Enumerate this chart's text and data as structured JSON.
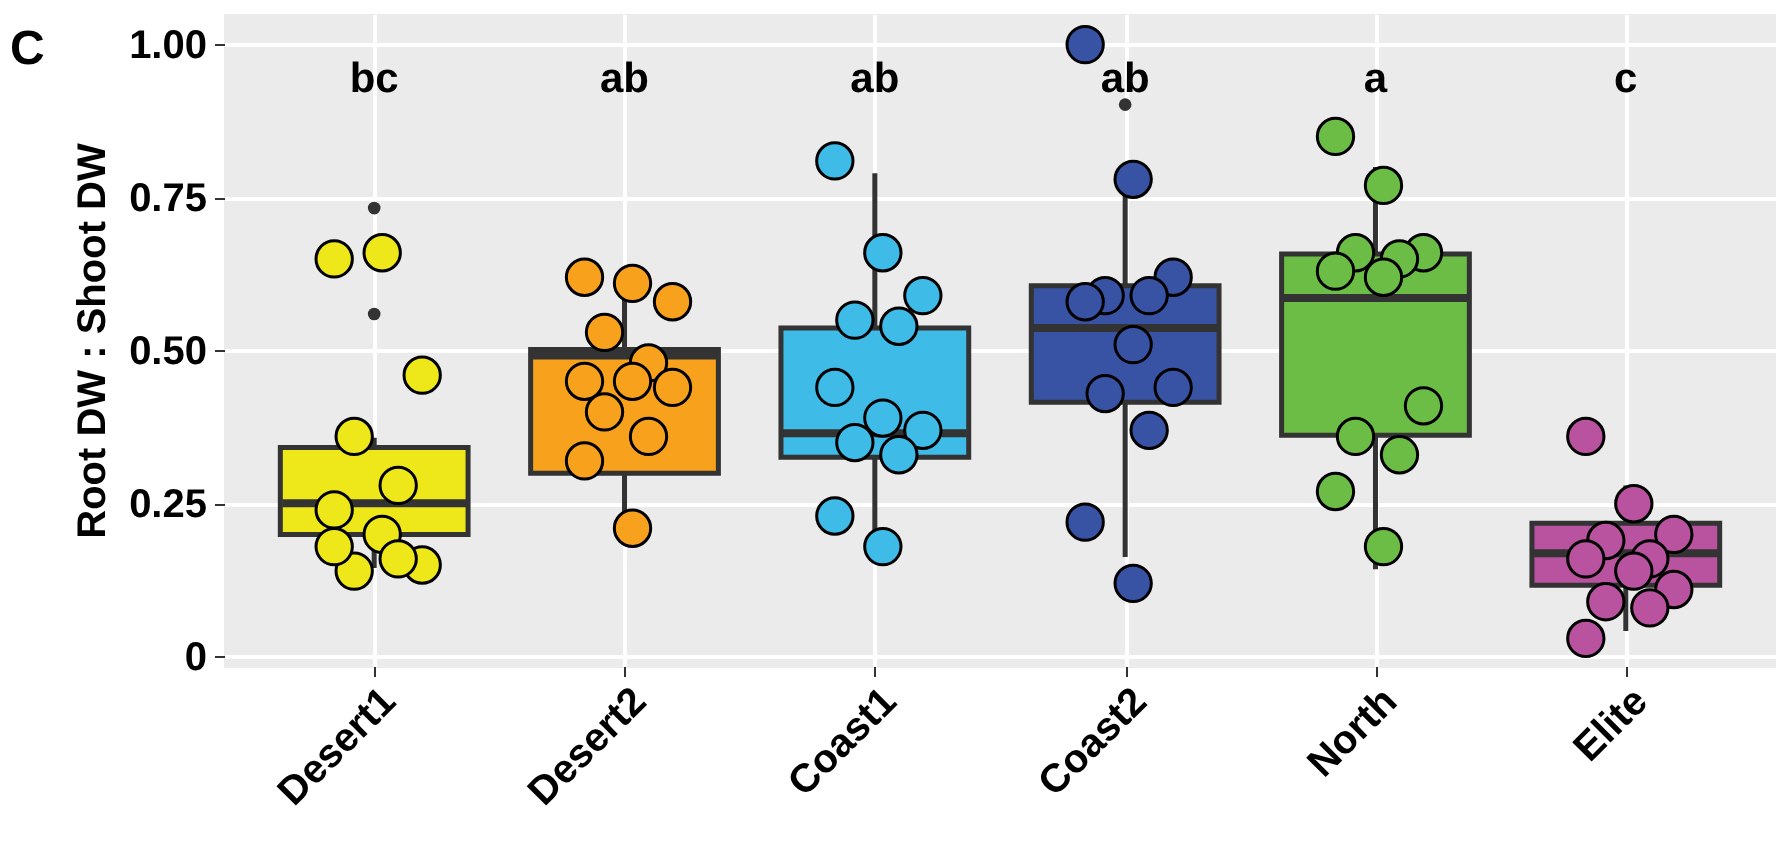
{
  "chart_data": {
    "type": "box",
    "ylabel": "Root DW : Shoot DW",
    "categories": [
      "Desert1",
      "Desert2",
      "Coast1",
      "Coast2",
      "North",
      "Elite"
    ],
    "colors": [
      "#eee81b",
      "#f7a11c",
      "#3fbbe8",
      "#3953a4",
      "#6bbd45",
      "#b9529f"
    ],
    "boxes": [
      {
        "low": 0.145,
        "q1": 0.2,
        "median": 0.251,
        "q3": 0.342,
        "high": 0.358,
        "outliers": [
          0.733,
          0.56
        ]
      },
      {
        "low": 0.231,
        "q1": 0.3,
        "median": 0.492,
        "q3": 0.502,
        "high": 0.62
      },
      {
        "low": 0.18,
        "q1": 0.326,
        "median": 0.365,
        "q3": 0.537,
        "high": 0.79
      },
      {
        "low": 0.163,
        "q1": 0.416,
        "median": 0.537,
        "q3": 0.606,
        "high": 0.778,
        "outliers": [
          0.902
        ]
      },
      {
        "low": 0.143,
        "q1": 0.362,
        "median": 0.586,
        "q3": 0.658,
        "high": 0.8
      },
      {
        "low": 0.042,
        "q1": 0.117,
        "median": 0.169,
        "q3": 0.218,
        "high": 0.28
      }
    ],
    "series": [
      {
        "type": "scatter",
        "color": "#eee81b",
        "x": [
          "Desert1",
          "Desert1",
          "Desert1",
          "Desert1",
          "Desert1",
          "Desert1",
          "Desert1",
          "Desert1",
          "Desert1",
          "Desert1",
          "Desert1"
        ],
        "values": [
          0.65,
          0.66,
          0.46,
          0.36,
          0.28,
          0.24,
          0.2,
          0.15,
          0.14,
          0.16,
          0.18
        ]
      },
      {
        "type": "scatter",
        "color": "#f7a11c",
        "x": [
          "Desert2",
          "Desert2",
          "Desert2",
          "Desert2",
          "Desert2",
          "Desert2",
          "Desert2",
          "Desert2",
          "Desert2",
          "Desert2",
          "Desert2",
          "Desert2"
        ],
        "values": [
          0.62,
          0.61,
          0.58,
          0.53,
          0.48,
          0.45,
          0.45,
          0.44,
          0.4,
          0.36,
          0.32,
          0.21
        ]
      },
      {
        "type": "scatter",
        "color": "#3fbbe8",
        "x": [
          "Coast1",
          "Coast1",
          "Coast1",
          "Coast1",
          "Coast1",
          "Coast1",
          "Coast1",
          "Coast1",
          "Coast1",
          "Coast1",
          "Coast1",
          "Coast1"
        ],
        "values": [
          0.81,
          0.66,
          0.59,
          0.55,
          0.54,
          0.44,
          0.39,
          0.37,
          0.35,
          0.33,
          0.23,
          0.18
        ]
      },
      {
        "type": "scatter",
        "color": "#3953a4",
        "x": [
          "Coast2",
          "Coast2",
          "Coast2",
          "Coast2",
          "Coast2",
          "Coast2",
          "Coast2",
          "Coast2",
          "Coast2",
          "Coast2",
          "Coast2",
          "Coast2"
        ],
        "values": [
          1.0,
          0.78,
          0.62,
          0.59,
          0.59,
          0.58,
          0.51,
          0.44,
          0.43,
          0.37,
          0.22,
          0.12
        ]
      },
      {
        "type": "scatter",
        "color": "#6bbd45",
        "x": [
          "North",
          "North",
          "North",
          "North",
          "North",
          "North",
          "North",
          "North",
          "North",
          "North",
          "North",
          "North"
        ],
        "values": [
          0.85,
          0.77,
          0.66,
          0.66,
          0.65,
          0.63,
          0.62,
          0.41,
          0.36,
          0.33,
          0.27,
          0.18
        ]
      },
      {
        "type": "scatter",
        "color": "#b9529f",
        "x": [
          "Elite",
          "Elite",
          "Elite",
          "Elite",
          "Elite",
          "Elite",
          "Elite",
          "Elite",
          "Elite",
          "Elite",
          "Elite"
        ],
        "values": [
          0.36,
          0.25,
          0.2,
          0.19,
          0.16,
          0.16,
          0.14,
          0.11,
          0.09,
          0.08,
          0.03
        ]
      }
    ],
    "ylim": [
      -0.015,
      1.05
    ],
    "yticks": [
      0,
      0.25,
      {
        "value": 0.5,
        "label": "0.50"
      },
      0.75,
      {
        "value": 1,
        "label": "1.00"
      }
    ],
    "grid": true,
    "annotations": [
      "C",
      "bc",
      "ab",
      "ab",
      "ab",
      "a",
      "c"
    ]
  }
}
